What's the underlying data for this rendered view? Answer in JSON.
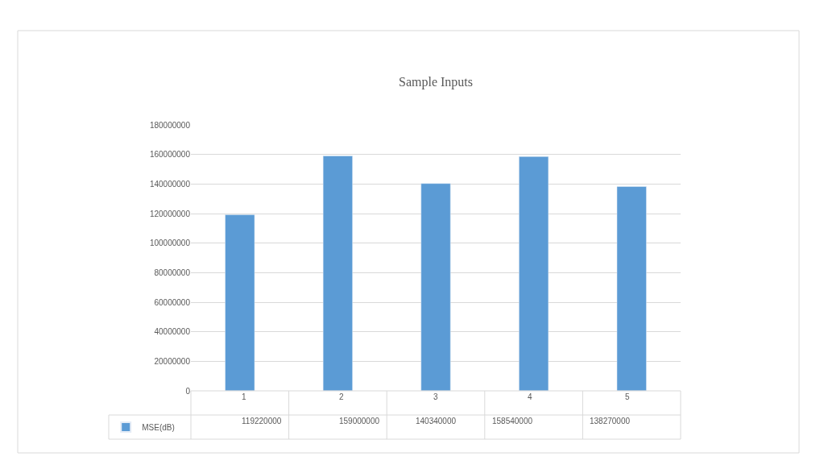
{
  "chart_data": {
    "type": "bar",
    "title": "Sample Inputs",
    "categories": [
      "1",
      "2",
      "3",
      "4",
      "5"
    ],
    "series": [
      {
        "name": "MSE(dB)",
        "color": "#5b9bd5",
        "values": [
          119220000,
          159000000,
          140340000,
          158540000,
          138270000
        ]
      }
    ],
    "ylim": [
      0,
      180000000
    ],
    "yticks": [
      0,
      20000000,
      40000000,
      60000000,
      80000000,
      100000000,
      120000000,
      140000000,
      160000000,
      180000000
    ],
    "grid": "y",
    "legend": "bottom",
    "data_labels": true
  }
}
